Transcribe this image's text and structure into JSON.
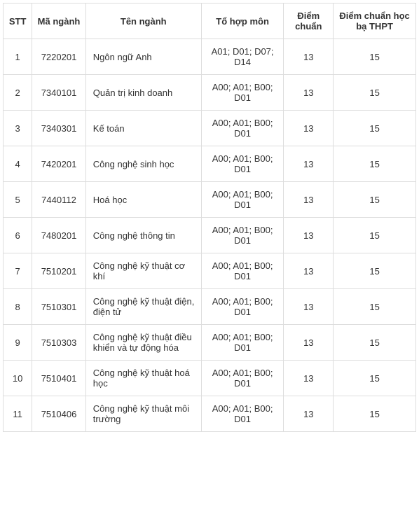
{
  "table": {
    "columns": [
      {
        "label": "STT",
        "class": "col-stt"
      },
      {
        "label": "Mã ngành",
        "class": "col-code"
      },
      {
        "label": "Tên ngành",
        "class": "col-name"
      },
      {
        "label": "Tổ hợp môn",
        "class": "col-subjects"
      },
      {
        "label": "Điểm chuẩn",
        "class": "col-score1"
      },
      {
        "label": "Điểm chuẩn học bạ THPT",
        "class": "col-score2"
      }
    ],
    "rows": [
      {
        "stt": "1",
        "code": "7220201",
        "name": "Ngôn ngữ Anh",
        "subjects": "A01; D01; D07; D14",
        "score1": "13",
        "score2": "15"
      },
      {
        "stt": "2",
        "code": "7340101",
        "name": "Quản trị kinh doanh",
        "subjects": "A00; A01; B00; D01",
        "score1": "13",
        "score2": "15"
      },
      {
        "stt": "3",
        "code": "7340301",
        "name": "Kế toán",
        "subjects": "A00; A01; B00; D01",
        "score1": "13",
        "score2": "15"
      },
      {
        "stt": "4",
        "code": "7420201",
        "name": "Công nghệ sinh học",
        "subjects": "A00; A01; B00; D01",
        "score1": "13",
        "score2": "15"
      },
      {
        "stt": "5",
        "code": "7440112",
        "name": "Hoá học",
        "subjects": "A00; A01; B00; D01",
        "score1": "13",
        "score2": "15"
      },
      {
        "stt": "6",
        "code": "7480201",
        "name": "Công nghệ thông tin",
        "subjects": "A00; A01; B00; D01",
        "score1": "13",
        "score2": "15"
      },
      {
        "stt": "7",
        "code": "7510201",
        "name": "Công nghệ kỹ thuật cơ khí",
        "subjects": "A00; A01; B00; D01",
        "score1": "13",
        "score2": "15"
      },
      {
        "stt": "8",
        "code": "7510301",
        "name": "Công nghệ kỹ thuật điện, điện tử",
        "subjects": "A00; A01; B00; D01",
        "score1": "13",
        "score2": "15"
      },
      {
        "stt": "9",
        "code": "7510303",
        "name": "Công nghệ kỹ thuật điều khiển và tự động hóa",
        "subjects": "A00; A01; B00; D01",
        "score1": "13",
        "score2": "15"
      },
      {
        "stt": "10",
        "code": "7510401",
        "name": "Công nghệ kỹ thuật hoá học",
        "subjects": "A00; A01; B00; D01",
        "score1": "13",
        "score2": "15"
      },
      {
        "stt": "11",
        "code": "7510406",
        "name": "Công nghệ kỹ thuật môi trường",
        "subjects": "A00; A01; B00; D01",
        "score1": "13",
        "score2": "15"
      }
    ]
  }
}
